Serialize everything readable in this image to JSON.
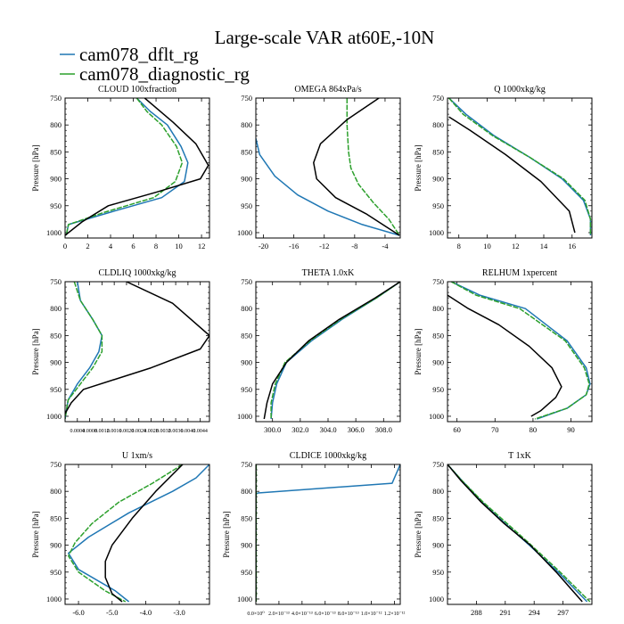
{
  "title": "Large-scale VAR at60E,-10N",
  "colors": {
    "dflt": "#1f77b4",
    "diag": "#2ca02c",
    "obs": "#000000"
  },
  "legend": [
    {
      "label": "cam078_dflt_rg",
      "color": "#1f77b4"
    },
    {
      "label": "cam078_diagnostic_rg",
      "color": "#2ca02c"
    }
  ],
  "chart_data": [
    {
      "type": "line",
      "title": "CLOUD  100xfraction",
      "ylabel": "Pressure [hPa]",
      "xlim": [
        0,
        12.7
      ],
      "ylim": [
        750,
        1010
      ],
      "xticks": [
        0,
        2,
        4,
        6,
        8,
        10,
        12
      ],
      "xtick_labels": [
        "0",
        "2",
        "4",
        "6",
        "8",
        "10",
        "12"
      ],
      "yticks": [
        750,
        800,
        850,
        900,
        950,
        1000
      ],
      "ytick_labels": [
        "750",
        "800",
        "850",
        "900",
        "950",
        "1000"
      ],
      "series": [
        {
          "name": "cam078_dflt_rg",
          "color": "#1f77b4",
          "x": [
            6.3,
            7.5,
            9.0,
            10.2,
            10.8,
            10.5,
            8.5,
            4.0,
            0.3,
            0.1
          ],
          "y": [
            750,
            775,
            800,
            840,
            870,
            905,
            935,
            962,
            985,
            1005
          ]
        },
        {
          "name": "cam078_diagnostic_rg",
          "color": "#2ca02c",
          "x": [
            6.3,
            7.2,
            8.5,
            9.8,
            10.3,
            9.7,
            7.8,
            3.5,
            0.3,
            0.1
          ],
          "y": [
            750,
            775,
            800,
            840,
            870,
            905,
            935,
            962,
            985,
            1005
          ]
        },
        {
          "name": "",
          "color": "#000000",
          "x": [
            7.0,
            9.5,
            11.5,
            12.6,
            11.9,
            8.0,
            3.8,
            1.5,
            0.0
          ],
          "y": [
            750,
            795,
            835,
            875,
            900,
            925,
            950,
            980,
            1005
          ]
        }
      ]
    },
    {
      "type": "line",
      "title": "OMEGA  864xPa/s",
      "ylabel": "",
      "xlim": [
        -21,
        -2
      ],
      "ylim": [
        750,
        1010
      ],
      "xticks": [
        -20,
        -16,
        -12,
        -8,
        -4
      ],
      "xtick_labels": [
        "-20",
        "-16",
        "-12",
        "-8",
        "-4"
      ],
      "yticks": [
        750,
        800,
        850,
        900,
        950,
        1000
      ],
      "ytick_labels": [
        "750",
        "800",
        "850",
        "900",
        "950",
        "1000"
      ],
      "series": [
        {
          "name": "cam078_dflt_rg",
          "color": "#1f77b4",
          "x": [
            -21.0,
            -20.5,
            -18.5,
            -15.5,
            -11.5,
            -7.0,
            -2.1
          ],
          "y": [
            825,
            855,
            895,
            930,
            960,
            985,
            1005
          ]
        },
        {
          "name": "cam078_diagnostic_rg",
          "color": "#2ca02c",
          "x": [
            -9.0,
            -9.0,
            -8.8,
            -8.5,
            -7.5,
            -5.5,
            -3.5,
            -2.1
          ],
          "y": [
            750,
            800,
            850,
            880,
            910,
            945,
            975,
            1005
          ]
        },
        {
          "name": "",
          "color": "#000000",
          "x": [
            -4.8,
            -9.0,
            -12.5,
            -13.4,
            -13.0,
            -10.5,
            -6.5,
            -2.1
          ],
          "y": [
            750,
            790,
            835,
            870,
            900,
            935,
            965,
            1005
          ]
        }
      ]
    },
    {
      "type": "line",
      "title": "Q  1000xkg/kg",
      "ylabel": "Pressure [hPa]",
      "xlim": [
        7.2,
        17.4
      ],
      "ylim": [
        750,
        1010
      ],
      "xticks": [
        8,
        10,
        12,
        14,
        16
      ],
      "xtick_labels": [
        "8",
        "10",
        "12",
        "14",
        "16"
      ],
      "yticks": [
        750,
        800,
        850,
        900,
        950,
        1000
      ],
      "ytick_labels": [
        "750",
        "800",
        "850",
        "900",
        "950",
        "1000"
      ],
      "series": [
        {
          "name": "cam078_dflt_rg",
          "color": "#1f77b4",
          "x": [
            7.3,
            8.5,
            10.5,
            13.0,
            15.3,
            16.8,
            17.3,
            17.3
          ],
          "y": [
            750,
            780,
            820,
            860,
            900,
            940,
            975,
            1005
          ]
        },
        {
          "name": "cam078_diagnostic_rg",
          "color": "#2ca02c",
          "x": [
            7.3,
            8.3,
            10.4,
            13.0,
            15.4,
            16.9,
            17.3,
            17.3
          ],
          "y": [
            750,
            780,
            820,
            860,
            900,
            940,
            975,
            1005
          ]
        },
        {
          "name": "",
          "color": "#000000",
          "x": [
            7.3,
            8.8,
            11.3,
            13.8,
            15.8,
            16.2
          ],
          "y": [
            785,
            810,
            855,
            905,
            960,
            1000
          ]
        }
      ]
    },
    {
      "type": "line",
      "title": "CLDLIQ  1000xkg/kg",
      "ylabel": "Pressure [hPa]",
      "xlim": [
        0.0,
        0.0047
      ],
      "ylim": [
        750,
        1010
      ],
      "xticks": [
        0.0004,
        0.0008,
        0.0012,
        0.0016,
        0.002,
        0.0024,
        0.0028,
        0.0032,
        0.0036,
        0.004,
        0.0044
      ],
      "xtick_labels": [
        "0.0004",
        "0.0008",
        "0.0012",
        "0.0016",
        "0.0020",
        "0.0024",
        "0.0028",
        "0.0032",
        "0.0036",
        "0.0040",
        "0.0044"
      ],
      "yticks": [
        750,
        800,
        850,
        900,
        950,
        1000
      ],
      "ytick_labels": [
        "750",
        "800",
        "850",
        "900",
        "950",
        "1000"
      ],
      "series": [
        {
          "name": "cam078_dflt_rg",
          "color": "#1f77b4",
          "x": [
            0.0004,
            0.0005,
            0.0009,
            0.0012,
            0.0011,
            0.0008,
            0.0004,
            0.0001,
            0.0
          ],
          "y": [
            750,
            785,
            820,
            850,
            880,
            910,
            940,
            970,
            1005
          ]
        },
        {
          "name": "cam078_diagnostic_rg",
          "color": "#2ca02c",
          "x": [
            0.0003,
            0.0005,
            0.0009,
            0.0012,
            0.0012,
            0.0009,
            0.0005,
            0.0001,
            0.0
          ],
          "y": [
            750,
            785,
            820,
            850,
            880,
            910,
            940,
            970,
            1005
          ]
        },
        {
          "name": "",
          "color": "#000000",
          "x": [
            0.002,
            0.0035,
            0.0047,
            0.0044,
            0.0028,
            0.0006,
            0.0002,
            0.0
          ],
          "y": [
            750,
            790,
            850,
            875,
            910,
            950,
            975,
            995
          ]
        }
      ]
    },
    {
      "type": "line",
      "title": "THETA  1.0xK",
      "ylabel": "",
      "xlim": [
        298.8,
        309.2
      ],
      "ylim": [
        750,
        1010
      ],
      "xticks": [
        300.0,
        302.0,
        304.0,
        306.0,
        308.0
      ],
      "xtick_labels": [
        "300.0",
        "302.0",
        "304.0",
        "306.0",
        "308.0"
      ],
      "yticks": [
        750,
        800,
        850,
        900,
        950,
        1000
      ],
      "ytick_labels": [
        "750",
        "800",
        "850",
        "900",
        "950",
        "1000"
      ],
      "series": [
        {
          "name": "cam078_dflt_rg",
          "color": "#1f77b4",
          "x": [
            309.2,
            307.5,
            305.0,
            302.8,
            301.0,
            300.3,
            300.0,
            299.9
          ],
          "y": [
            750,
            780,
            820,
            860,
            900,
            940,
            975,
            1005
          ]
        },
        {
          "name": "cam078_diagnostic_rg",
          "color": "#2ca02c",
          "x": [
            309.2,
            307.5,
            304.9,
            302.7,
            300.9,
            300.2,
            299.9,
            299.9
          ],
          "y": [
            750,
            780,
            820,
            860,
            900,
            940,
            975,
            1005
          ]
        },
        {
          "name": "",
          "color": "#000000",
          "x": [
            309.2,
            307.4,
            304.8,
            302.6,
            301.0,
            300.0,
            299.6,
            299.4
          ],
          "y": [
            750,
            780,
            820,
            860,
            900,
            940,
            975,
            1005
          ]
        }
      ]
    },
    {
      "type": "line",
      "title": "RELHUM  1xpercent",
      "ylabel": "Pressure [hPa]",
      "xlim": [
        57.5,
        95.5
      ],
      "ylim": [
        750,
        1010
      ],
      "xticks": [
        60,
        70,
        80,
        90
      ],
      "xtick_labels": [
        "60",
        "70",
        "80",
        "90"
      ],
      "yticks": [
        750,
        800,
        850,
        900,
        950,
        1000
      ],
      "ytick_labels": [
        "750",
        "800",
        "850",
        "900",
        "950",
        "1000"
      ],
      "series": [
        {
          "name": "cam078_dflt_rg",
          "color": "#1f77b4",
          "x": [
            58.5,
            66.0,
            78.0,
            89.0,
            94.0,
            95.0,
            94.0,
            89.0,
            81.0
          ],
          "y": [
            750,
            775,
            800,
            860,
            910,
            940,
            960,
            985,
            1005
          ]
        },
        {
          "name": "cam078_diagnostic_rg",
          "color": "#2ca02c",
          "x": [
            58.5,
            65.0,
            76.5,
            88.5,
            93.5,
            94.8,
            94.0,
            89.0,
            80.5
          ],
          "y": [
            750,
            775,
            800,
            860,
            910,
            940,
            960,
            985,
            1005
          ]
        },
        {
          "name": "",
          "color": "#000000",
          "x": [
            57.5,
            63.0,
            71.0,
            79.0,
            85.0,
            87.5,
            86.0,
            82.0,
            79.5
          ],
          "y": [
            775,
            800,
            830,
            870,
            910,
            945,
            965,
            990,
            1000
          ]
        }
      ]
    },
    {
      "type": "line",
      "title": "U  1xm/s",
      "ylabel": "Pressure [hPa]",
      "xlim": [
        -6.4,
        -2.1
      ],
      "ylim": [
        750,
        1010
      ],
      "xticks": [
        -6.0,
        -5.0,
        -4.0,
        -3.0
      ],
      "xtick_labels": [
        "-6.0",
        "-5.0",
        "-4.0",
        "-3.0"
      ],
      "yticks": [
        750,
        800,
        850,
        900,
        950,
        1000
      ],
      "ytick_labels": [
        "750",
        "800",
        "850",
        "900",
        "950",
        "1000"
      ],
      "series": [
        {
          "name": "cam078_dflt_rg",
          "color": "#1f77b4",
          "x": [
            -2.1,
            -2.5,
            -3.2,
            -4.5,
            -5.7,
            -6.3,
            -6.0,
            -4.9,
            -4.5
          ],
          "y": [
            750,
            775,
            800,
            840,
            885,
            915,
            945,
            985,
            1005
          ]
        },
        {
          "name": "cam078_diagnostic_rg",
          "color": "#2ca02c",
          "x": [
            -2.9,
            -3.8,
            -4.8,
            -5.6,
            -6.1,
            -6.3,
            -6.0,
            -5.2,
            -4.6
          ],
          "y": [
            750,
            785,
            820,
            860,
            895,
            920,
            950,
            985,
            1005
          ]
        },
        {
          "name": "",
          "color": "#000000",
          "x": [
            -2.9,
            -3.7,
            -4.4,
            -5.0,
            -5.2,
            -5.2,
            -5.0,
            -4.7
          ],
          "y": [
            750,
            800,
            850,
            900,
            930,
            960,
            990,
            1005
          ]
        }
      ]
    },
    {
      "type": "line",
      "title": "CLDICE  1000xkg/kg",
      "ylabel": "Pressure [hPa]",
      "xlim": [
        0.0,
        1.25e-12
      ],
      "ylim": [
        750,
        1010
      ],
      "xticks": [
        0.0,
        2e-13,
        4e-13,
        6e-13,
        8e-13,
        1e-12,
        1.2e-12
      ],
      "xtick_labels": [
        "0.0×10⁰",
        "2.0×10⁻¹³",
        "4.0×10⁻¹³",
        "6.0×10⁻¹³",
        "8.0×10⁻¹³",
        "1.0×10⁻¹²",
        "1.2×10⁻¹²"
      ],
      "yticks": [
        750,
        800,
        850,
        900,
        950,
        1000
      ],
      "ytick_labels": [
        "750",
        "800",
        "850",
        "900",
        "950",
        "1000"
      ],
      "series": [
        {
          "name": "cam078_dflt_rg",
          "color": "#1f77b4",
          "x": [
            1.25e-12,
            1.18e-12,
            2e-14,
            0.0,
            0.0
          ],
          "y": [
            750,
            785,
            803,
            805,
            1005
          ]
        },
        {
          "name": "cam078_diagnostic_rg",
          "color": "#2ca02c",
          "x": [
            3e-15,
            3e-15
          ],
          "y": [
            750,
            1005
          ]
        },
        {
          "name": "",
          "color": "#000000",
          "x": [
            0.0,
            0.0
          ],
          "y": [
            750,
            1005
          ]
        }
      ]
    },
    {
      "type": "line",
      "title": "T  1xK",
      "ylabel": "Pressure [hPa]",
      "xlim": [
        285,
        300
      ],
      "ylim": [
        750,
        1010
      ],
      "xticks": [
        288,
        291,
        294,
        297
      ],
      "xtick_labels": [
        "288",
        "291",
        "294",
        "297"
      ],
      "yticks": [
        750,
        800,
        850,
        900,
        950,
        1000
      ],
      "ytick_labels": [
        "750",
        "800",
        "850",
        "900",
        "950",
        "1000"
      ],
      "series": [
        {
          "name": "cam078_dflt_rg",
          "color": "#1f77b4",
          "x": [
            285.0,
            286.5,
            288.6,
            291.0,
            293.5,
            296.5,
            299.5
          ],
          "y": [
            750,
            780,
            820,
            860,
            900,
            950,
            1005
          ]
        },
        {
          "name": "cam078_diagnostic_rg",
          "color": "#2ca02c",
          "x": [
            285.0,
            286.5,
            288.7,
            291.2,
            293.7,
            296.7,
            299.8
          ],
          "y": [
            750,
            780,
            820,
            860,
            900,
            950,
            1005
          ]
        },
        {
          "name": "",
          "color": "#000000",
          "x": [
            285.0,
            286.4,
            288.5,
            290.9,
            293.6,
            296.3,
            299.0
          ],
          "y": [
            750,
            780,
            820,
            860,
            900,
            950,
            1005
          ]
        }
      ]
    }
  ]
}
